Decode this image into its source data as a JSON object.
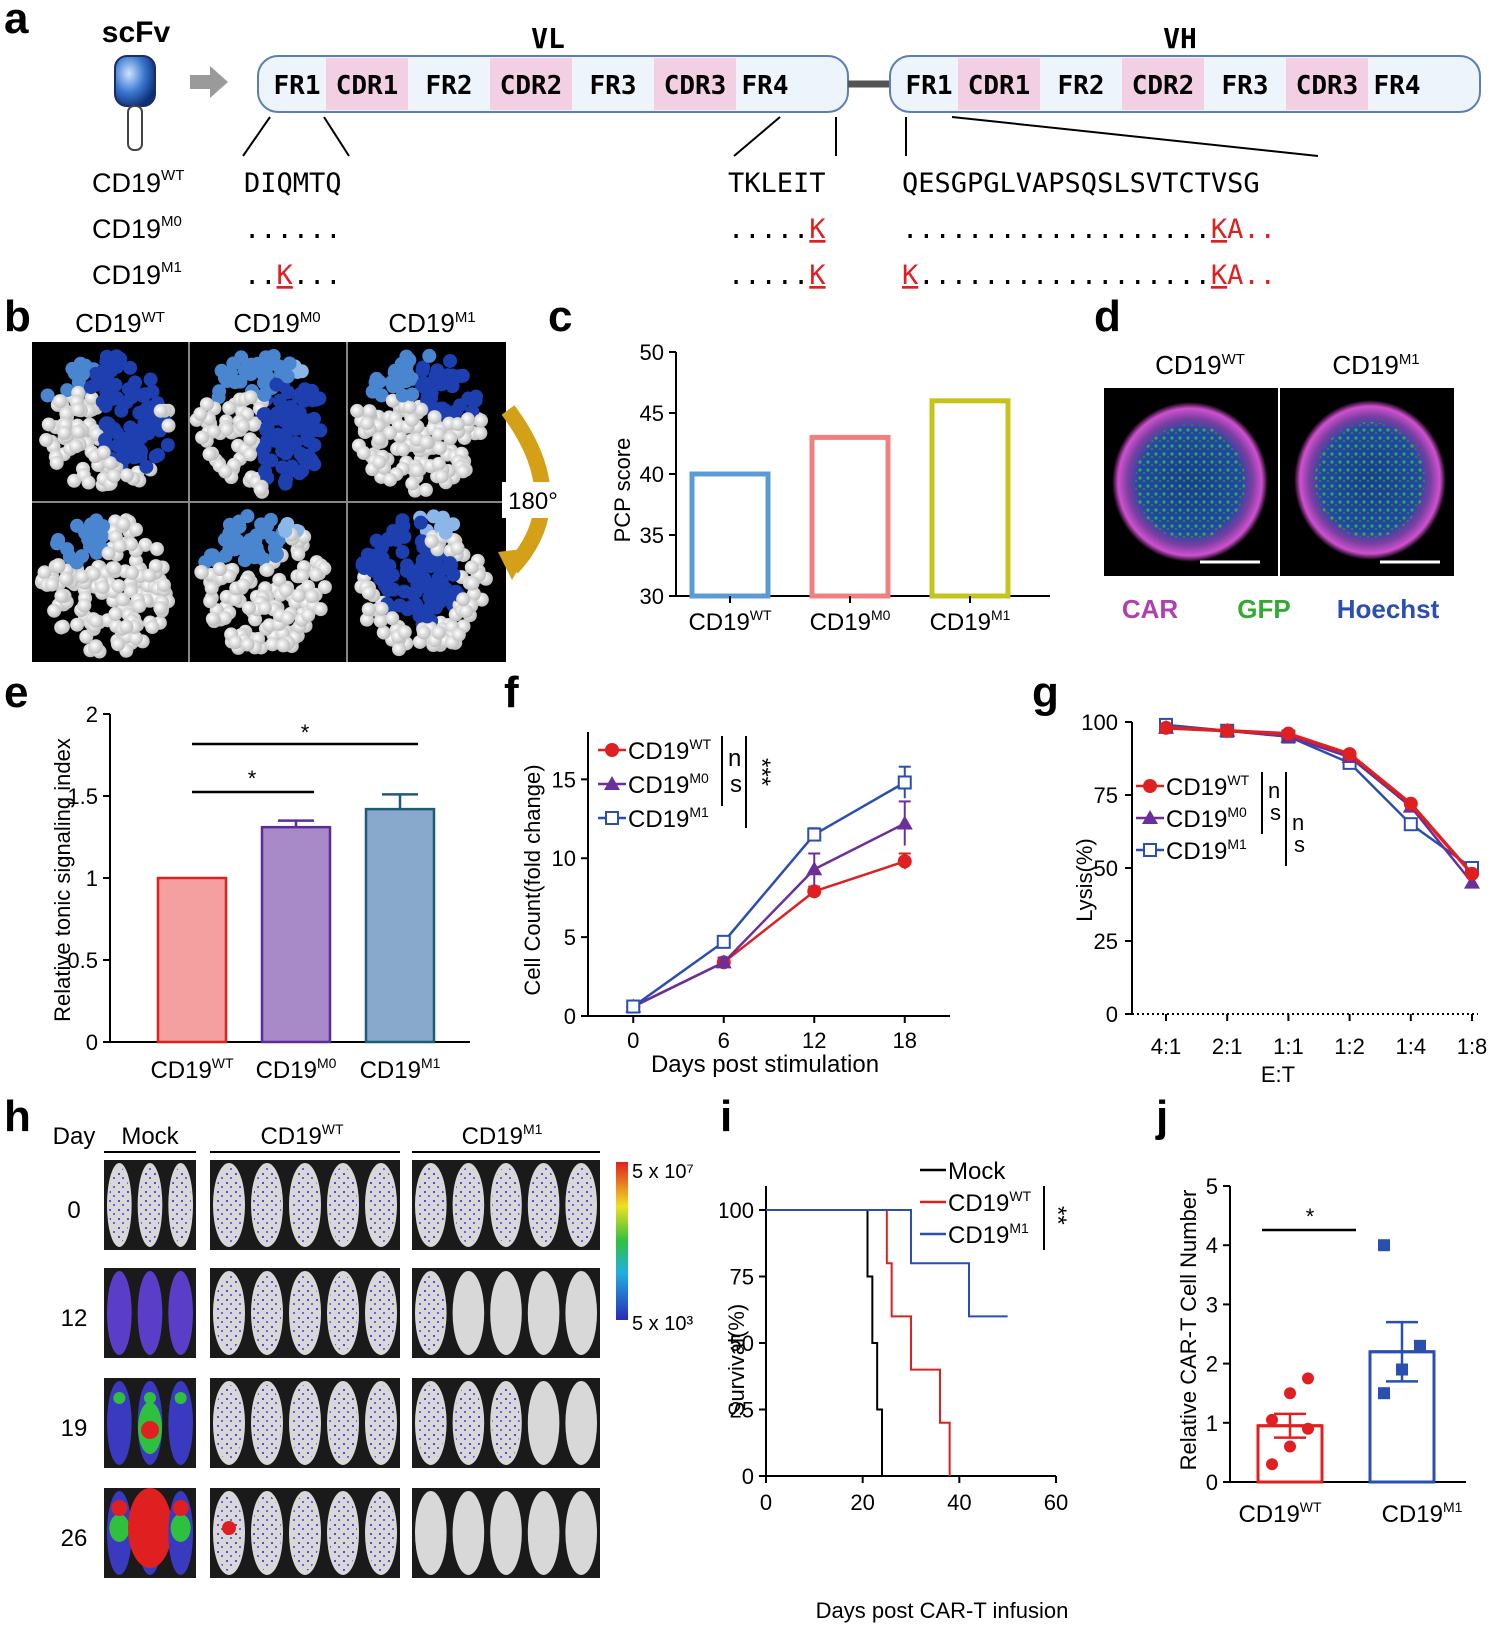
{
  "panels": {
    "a": "a",
    "b": "b",
    "c": "c",
    "d": "d",
    "e": "e",
    "f": "f",
    "g": "g",
    "h": "h",
    "i": "i",
    "j": "j"
  },
  "a": {
    "scfv": "scFv",
    "vl": "VL",
    "vh": "VH",
    "vl_regions": [
      "FR1",
      "CDR1",
      "FR2",
      "CDR2",
      "FR3",
      "CDR3",
      "FR4"
    ],
    "vh_regions": [
      "FR1",
      "CDR1",
      "FR2",
      "CDR2",
      "FR3",
      "CDR3",
      "FR4"
    ],
    "rows": [
      {
        "name": "CD19",
        "sup": "WT",
        "seq1": "DIQMTQ",
        "seq2": "TKLEIT",
        "seq3": "QESGPGLVAPSQSLSVTCTVSG"
      },
      {
        "name": "CD19",
        "sup": "M0",
        "seq1": "......",
        "seq2_pre": ".....",
        "seq2_mut": "K",
        "seq3_pre": "...................",
        "seq3_mut": "K",
        "seq3_post": "A.."
      },
      {
        "name": "CD19",
        "sup": "M1",
        "seq1_pre": "..",
        "seq1_mut": "K",
        "seq1_post": "...",
        "seq2_pre": ".....",
        "seq2_mut": "K",
        "seq3_mut1": "K",
        "seq3_mid": "..................",
        "seq3_mut": "K",
        "seq3_post": "A.."
      }
    ]
  },
  "b": {
    "labels": [
      {
        "name": "CD19",
        "sup": "WT"
      },
      {
        "name": "CD19",
        "sup": "M0"
      },
      {
        "name": "CD19",
        "sup": "M1"
      }
    ],
    "rotation": "180°"
  },
  "c": {
    "chart_data": {
      "type": "bar",
      "categories": [
        "CD19WT",
        "CD19M0",
        "CD19M1"
      ],
      "values": [
        40,
        43,
        46
      ],
      "ylim": [
        30,
        50
      ],
      "yticks": [
        30,
        35,
        40,
        45,
        50
      ],
      "ylabel": "PCP score",
      "colors": [
        "#5b9bd5",
        "#f08080",
        "#c4c41c"
      ]
    }
  },
  "d": {
    "labels": [
      {
        "name": "CD19",
        "sup": "WT"
      },
      {
        "name": "CD19",
        "sup": "M1"
      }
    ],
    "legend": [
      {
        "t": "CAR",
        "c": "#b040b0"
      },
      {
        "t": "GFP",
        "c": "#33aa33"
      },
      {
        "t": "Hoechst",
        "c": "#2a4fb0"
      }
    ]
  },
  "e": {
    "chart_data": {
      "type": "bar",
      "categories": [
        "CD19WT",
        "CD19M0",
        "CD19M1"
      ],
      "values": [
        1.0,
        1.31,
        1.42
      ],
      "errors": [
        0,
        0.04,
        0.09
      ],
      "ylim": [
        0,
        2
      ],
      "yticks": [
        "0",
        "0.5",
        "1",
        "1.5",
        "2"
      ],
      "ylabel": "Relative tonic signaling index",
      "colors": [
        "#f4a0a0",
        "#a88ac8",
        "#88a8cc"
      ],
      "edges": [
        "#e02020",
        "#5a2e9a",
        "#1f5a78"
      ],
      "sig": [
        "*",
        "*"
      ]
    }
  },
  "f": {
    "chart_data": {
      "type": "line",
      "x": [
        0,
        6,
        12,
        18
      ],
      "xlim": [
        -3,
        21
      ],
      "ylim": [
        0,
        18
      ],
      "yticks": [
        0,
        5,
        10,
        15
      ],
      "xlabel": "Days post stimulation",
      "ylabel": "Cell Count(fold change)",
      "series": [
        {
          "name": "CD19WT",
          "values": [
            0.6,
            3.4,
            7.9,
            9.8
          ],
          "err": [
            0.1,
            0.3,
            0.3,
            0.5
          ],
          "color": "#e02020",
          "marker": "circle"
        },
        {
          "name": "CD19M0",
          "values": [
            0.6,
            3.4,
            9.3,
            12.2
          ],
          "err": [
            0.1,
            0.3,
            1.0,
            1.4
          ],
          "color": "#6a2f9a",
          "marker": "triangle"
        },
        {
          "name": "CD19M1",
          "values": [
            0.6,
            4.7,
            11.5,
            14.8
          ],
          "err": [
            0.1,
            0.2,
            0.4,
            1.0
          ],
          "color": "#2a4fb0",
          "marker": "square"
        }
      ],
      "sig": [
        "n",
        "s",
        "***"
      ]
    }
  },
  "g": {
    "chart_data": {
      "type": "line",
      "categories": [
        "4:1",
        "2:1",
        "1:1",
        "1:2",
        "1:4",
        "1:8"
      ],
      "ylim": [
        0,
        100
      ],
      "yticks": [
        0,
        25,
        50,
        75,
        100
      ],
      "xlabel": "E:T",
      "ylabel": "Lysis(%)",
      "series": [
        {
          "name": "CD19WT",
          "values": [
            98,
            97,
            96,
            89,
            72,
            48
          ],
          "color": "#e02020",
          "marker": "circle"
        },
        {
          "name": "CD19M0",
          "values": [
            98,
            97,
            95,
            88,
            71,
            45
          ],
          "color": "#6a2f9a",
          "marker": "triangle"
        },
        {
          "name": "CD19M1",
          "values": [
            99,
            97,
            95,
            86,
            65,
            50
          ],
          "color": "#2a4fb0",
          "marker": "square"
        }
      ],
      "sig": [
        "n",
        "s",
        "n",
        "s"
      ]
    }
  },
  "h": {
    "day": "Day",
    "groups": [
      "Mock",
      {
        "name": "CD19",
        "sup": "WT"
      },
      {
        "name": "CD19",
        "sup": "M1"
      }
    ],
    "days": [
      "0",
      "12",
      "19",
      "26"
    ],
    "scale_max": "5 x 10⁷",
    "scale_min": "5 x 10³"
  },
  "i": {
    "chart_data": {
      "type": "line",
      "xlim": [
        0,
        60
      ],
      "ylim": [
        0,
        100
      ],
      "xticks": [
        0,
        20,
        40,
        60
      ],
      "yticks": [
        0,
        25,
        50,
        75,
        100
      ],
      "xlabel": "Days post CAR-T infusion",
      "ylabel": "Survival(%)",
      "series": [
        {
          "name": "Mock",
          "steps": [
            [
              0,
              100
            ],
            [
              21,
              100
            ],
            [
              21,
              75
            ],
            [
              22,
              75
            ],
            [
              22,
              50
            ],
            [
              23,
              50
            ],
            [
              23,
              25
            ],
            [
              24,
              25
            ],
            [
              24,
              0
            ],
            [
              26,
              0
            ]
          ],
          "color": "#000000"
        },
        {
          "name": "CD19WT",
          "steps": [
            [
              0,
              100
            ],
            [
              25,
              100
            ],
            [
              25,
              80
            ],
            [
              26,
              80
            ],
            [
              26,
              60
            ],
            [
              30,
              60
            ],
            [
              30,
              40
            ],
            [
              36,
              40
            ],
            [
              36,
              20
            ],
            [
              38,
              20
            ],
            [
              38,
              0
            ]
          ],
          "color": "#e02020"
        },
        {
          "name": "CD19M1",
          "steps": [
            [
              0,
              100
            ],
            [
              30,
              100
            ],
            [
              30,
              80
            ],
            [
              42,
              80
            ],
            [
              42,
              60
            ],
            [
              50,
              60
            ]
          ],
          "color": "#2a4fb0"
        }
      ],
      "sig": "**"
    }
  },
  "j": {
    "chart_data": {
      "type": "bar",
      "categories": [
        "CD19WT",
        "CD19M1"
      ],
      "values": [
        0.95,
        2.2
      ],
      "errors": [
        0.2,
        0.5
      ],
      "ylim": [
        0,
        5
      ],
      "yticks": [
        0,
        1,
        2,
        3,
        4,
        5
      ],
      "ylabel": "Relative CAR-T Cell Number",
      "points": [
        [
          0.3,
          0.6,
          0.9,
          1.05,
          1.5,
          1.75
        ],
        [
          1.5,
          1.9,
          2.3,
          4.0
        ]
      ],
      "colors": [
        "#e02020",
        "#2a4fb0"
      ],
      "sig": "*"
    }
  }
}
